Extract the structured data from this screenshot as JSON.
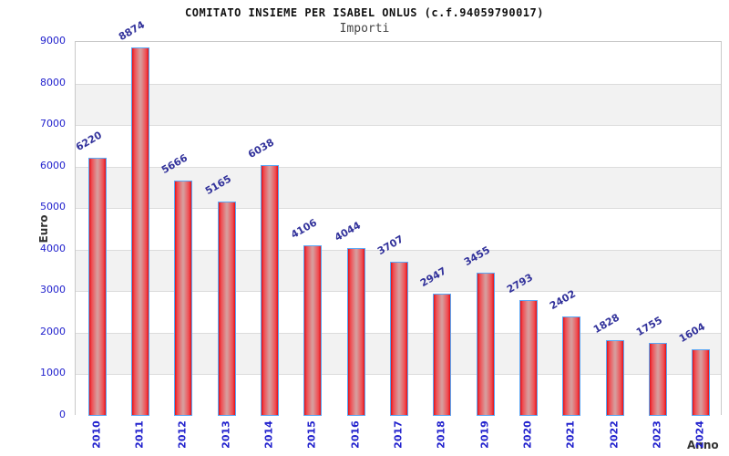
{
  "title": "COMITATO INSIEME PER ISABEL ONLUS (c.f.94059790017)",
  "subtitle": "Importi",
  "chart_data": {
    "type": "bar",
    "title": "COMITATO INSIEME PER ISABEL ONLUS (c.f.94059790017)",
    "subtitle": "Importi",
    "xlabel": "Anno",
    "ylabel": "Euro",
    "categories": [
      "2010",
      "2011",
      "2012",
      "2013",
      "2014",
      "2015",
      "2016",
      "2017",
      "2018",
      "2019",
      "2020",
      "2021",
      "2022",
      "2023",
      "2024"
    ],
    "values": [
      6220,
      8874,
      5666,
      5165,
      6038,
      4106,
      4044,
      3707,
      2947,
      3455,
      2793,
      2402,
      1828,
      1755,
      1604
    ],
    "ylim": [
      0,
      9000
    ],
    "ytick_step": 1000,
    "grid": true,
    "legend_position": "none",
    "colors": {
      "bar_edge_red": "#e01218",
      "bar_mid_red": "#f04a50",
      "bar_center_highlight": "#d89a9a",
      "bar_border_blue": "#5aa7f5",
      "tick_label_blue": "#2121cd",
      "value_label_navy": "#32329b",
      "band_gray": "#f2f2f2",
      "band_white": "#ffffff",
      "gridline_gray": "#dcdcdc",
      "axis_title_gray": "#333333"
    }
  }
}
